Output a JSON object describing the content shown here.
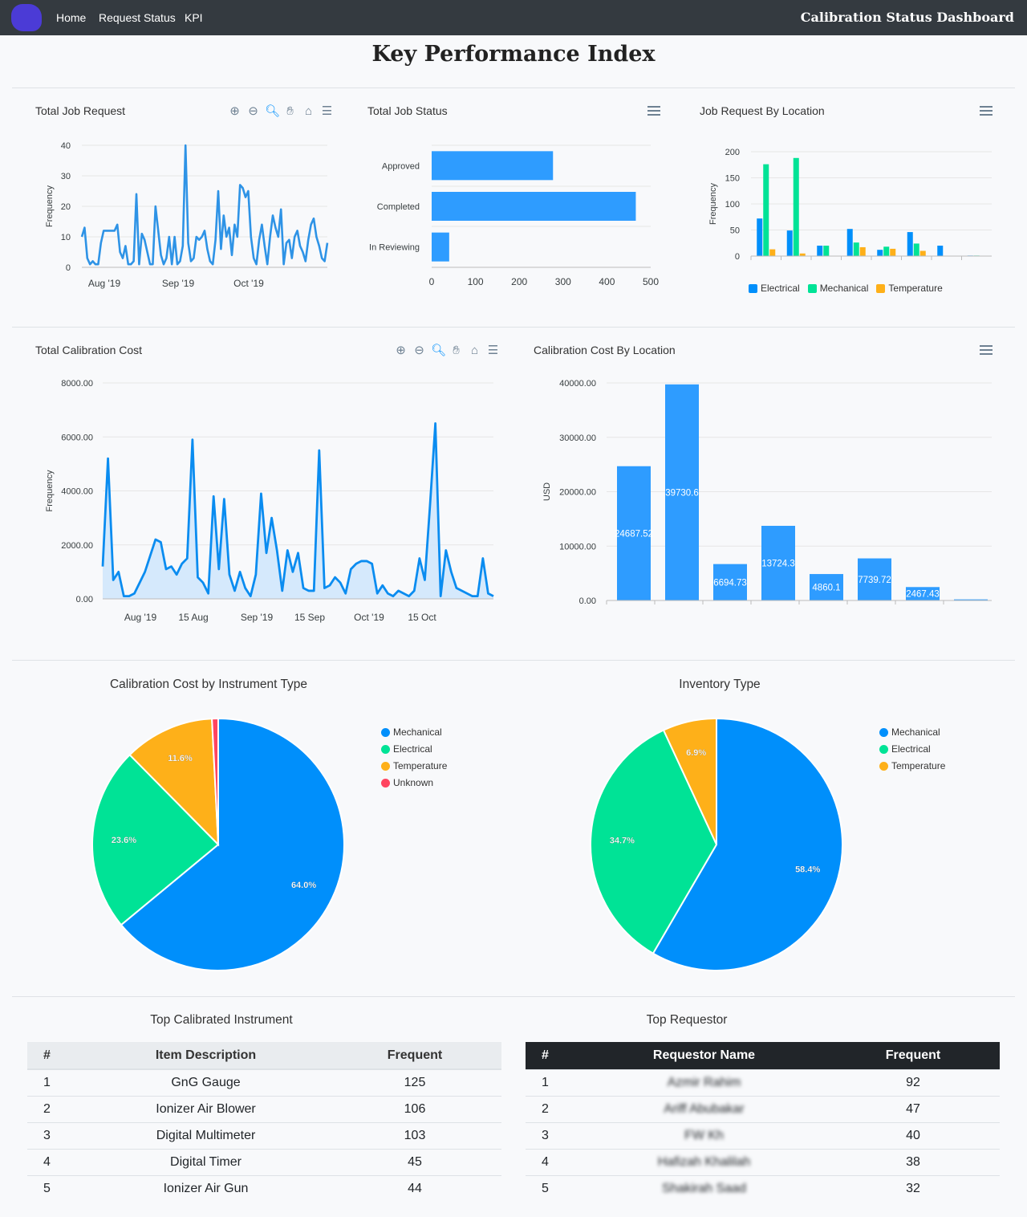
{
  "nav": {
    "links": [
      "Home",
      "Request Status",
      "KPI"
    ],
    "brand": "Calibration Status Dashboard"
  },
  "page_title": "Key Performance Index",
  "toolbar_icons": [
    "zoom-in-icon",
    "zoom-out-icon",
    "zoom-selection-icon",
    "pan-icon",
    "home-icon",
    "menu-icon"
  ],
  "colors": {
    "blue": "#008ffb",
    "green": "#00e396",
    "orange": "#feb019",
    "red": "#ff4560",
    "navbar": "#343a40"
  },
  "chart_data": [
    {
      "id": "total_job_request",
      "type": "line",
      "title": "Total Job Request",
      "ylabel": "Frequency",
      "ylim": [
        0,
        40
      ],
      "y_ticks": [
        "0",
        "10",
        "20",
        "30",
        "40"
      ],
      "x_ticks": [
        "Aug '19",
        "Sep '19",
        "Oct '19"
      ],
      "values": [
        10,
        13,
        3,
        1,
        2,
        1,
        1,
        8,
        12,
        12,
        12,
        12,
        12,
        14,
        5,
        3,
        7,
        1,
        1,
        2,
        24,
        1,
        11,
        9,
        5,
        1,
        1,
        20,
        12,
        4,
        1,
        3,
        10,
        1,
        10,
        1,
        2,
        7,
        40,
        8,
        2,
        3,
        10,
        9,
        10,
        12,
        6,
        2,
        1,
        9,
        25,
        6,
        17,
        10,
        13,
        4,
        14,
        10,
        27,
        26,
        23,
        25,
        10,
        3,
        1,
        9,
        14,
        7,
        1,
        10,
        17,
        13,
        10,
        19,
        1,
        8,
        9,
        3,
        10,
        12,
        7,
        5,
        2,
        9,
        14,
        16,
        10,
        7,
        3,
        2,
        8
      ]
    },
    {
      "id": "total_job_status",
      "type": "bar",
      "orientation": "horizontal",
      "title": "Total Job Status",
      "categories": [
        "Approved",
        "Completed",
        "In Reviewing"
      ],
      "values": [
        277,
        466,
        40
      ],
      "xlim": [
        0,
        500
      ],
      "x_ticks": [
        "0",
        "100",
        "200",
        "300",
        "400",
        "500"
      ]
    },
    {
      "id": "job_request_by_location",
      "type": "bar",
      "title": "Job Request By Location",
      "ylabel": "Frequency",
      "ylim": [
        0,
        200
      ],
      "y_ticks": [
        "0",
        "50",
        "100",
        "150",
        "200"
      ],
      "categories": [
        "",
        "",
        "",
        "",
        "",
        "",
        "",
        ""
      ],
      "series": [
        {
          "name": "Electrical",
          "color": "#008ffb",
          "values": [
            72,
            49,
            20,
            52,
            12,
            46,
            20,
            1
          ]
        },
        {
          "name": "Mechanical",
          "color": "#00e396",
          "values": [
            176,
            188,
            20,
            26,
            18,
            24,
            0,
            1
          ]
        },
        {
          "name": "Temperature",
          "color": "#feb019",
          "values": [
            13,
            5,
            0,
            17,
            14,
            10,
            0,
            0
          ]
        }
      ]
    },
    {
      "id": "total_calibration_cost",
      "type": "area",
      "title": "Total Calibration Cost",
      "ylabel": "Frequency",
      "ylim": [
        0,
        8000
      ],
      "y_ticks": [
        "0.00",
        "2000.00",
        "4000.00",
        "6000.00",
        "8000.00"
      ],
      "x_ticks": [
        "Aug '19",
        "15 Aug",
        "Sep '19",
        "15 Sep",
        "Oct '19",
        "15 Oct"
      ],
      "values": [
        1200,
        5200,
        700,
        1000,
        100,
        100,
        200,
        600,
        1000,
        1600,
        2200,
        2100,
        1100,
        1200,
        900,
        1300,
        1500,
        5900,
        800,
        600,
        200,
        3800,
        1100,
        3700,
        900,
        300,
        1000,
        400,
        100,
        900,
        3900,
        1700,
        3000,
        1800,
        300,
        1800,
        1000,
        1700,
        400,
        300,
        300,
        5500,
        400,
        500,
        800,
        600,
        200,
        1100,
        1300,
        1400,
        1400,
        1300,
        200,
        500,
        200,
        100,
        300,
        200,
        100,
        300,
        1500,
        700,
        3500,
        6500,
        100,
        1800,
        1000,
        400,
        300,
        200,
        100,
        100,
        1500,
        200,
        100
      ]
    },
    {
      "id": "calibration_cost_by_location",
      "type": "bar",
      "title": "Calibration Cost By Location",
      "ylabel": "USD",
      "ylim": [
        0,
        40000
      ],
      "y_ticks": [
        "0.00",
        "10000.00",
        "20000.00",
        "30000.00",
        "40000.00"
      ],
      "categories": [
        "",
        "",
        "",
        "",
        "",
        "",
        "",
        ""
      ],
      "values": [
        24687.52,
        39730.6,
        6694.73,
        13724.3,
        4860.1,
        7739.72,
        2467.43,
        200
      ],
      "labels": [
        "24687.52",
        "39730.6",
        "6694.73",
        "13724.3",
        "4860.1",
        "7739.72",
        "2467.43",
        ""
      ]
    },
    {
      "id": "calibration_cost_by_instrument_type",
      "type": "pie",
      "title": "Calibration Cost by Instrument Type",
      "labels": [
        "Mechanical",
        "Electrical",
        "Temperature",
        "Unknown"
      ],
      "values": [
        64.0,
        23.6,
        11.6,
        0.8
      ],
      "value_labels": [
        "64.0%",
        "23.6%",
        "11.6%",
        ""
      ],
      "colors": [
        "#008ffb",
        "#00e396",
        "#feb019",
        "#ff4560"
      ]
    },
    {
      "id": "inventory_type",
      "type": "pie",
      "title": "Inventory Type",
      "labels": [
        "Mechanical",
        "Electrical",
        "Temperature"
      ],
      "values": [
        58.4,
        34.7,
        6.9
      ],
      "value_labels": [
        "58.4%",
        "34.7%",
        "6.9%"
      ],
      "colors": [
        "#008ffb",
        "#00e396",
        "#feb019"
      ]
    }
  ],
  "top_instruments": {
    "title": "Top Calibrated Instrument",
    "headers": [
      "#",
      "Item Description",
      "Frequent"
    ],
    "rows": [
      [
        "1",
        "GnG Gauge",
        "125"
      ],
      [
        "2",
        "Ionizer Air Blower",
        "106"
      ],
      [
        "3",
        "Digital Multimeter",
        "103"
      ],
      [
        "4",
        "Digital Timer",
        "45"
      ],
      [
        "5",
        "Ionizer Air Gun",
        "44"
      ]
    ]
  },
  "top_requestors": {
    "title": "Top Requestor",
    "headers": [
      "#",
      "Requestor Name",
      "Frequent"
    ],
    "rows": [
      [
        "1",
        "Azmir Rahim",
        "92"
      ],
      [
        "2",
        "Ariff Abubakar",
        "47"
      ],
      [
        "3",
        "FW Kh",
        "40"
      ],
      [
        "4",
        "Hafizah Khalilah",
        "38"
      ],
      [
        "5",
        "Shakirah Saad",
        "32"
      ]
    ]
  }
}
